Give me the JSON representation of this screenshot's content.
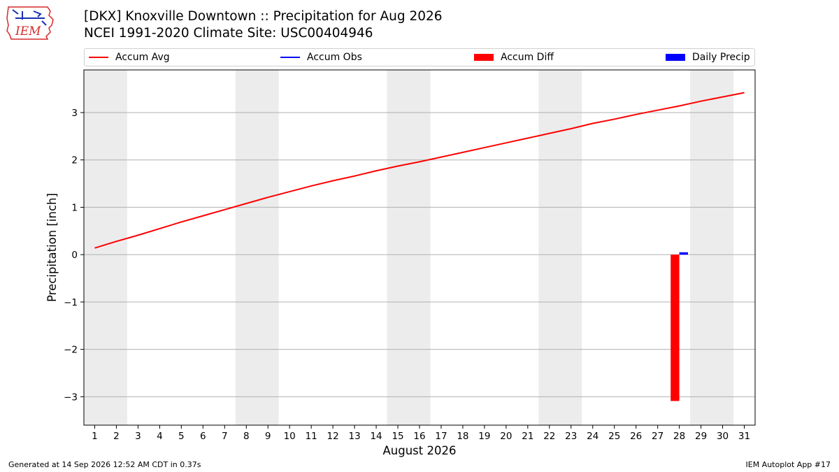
{
  "header": {
    "title_line1": "[DKX] Knoxville Downtown :: Precipitation for Aug 2026",
    "title_line2": "NCEI 1991-2020 Climate Site: USC00404946"
  },
  "logo": {
    "text": "IEM",
    "color": "#d62a2a",
    "accent": "#1a2fb3"
  },
  "legend": [
    {
      "label": "Accum Avg",
      "kind": "line",
      "color": "#ff0000"
    },
    {
      "label": "Accum Obs",
      "kind": "line",
      "color": "#0000ff"
    },
    {
      "label": "Accum Diff",
      "kind": "patch",
      "color": "#ff0000"
    },
    {
      "label": "Daily Precip",
      "kind": "patch",
      "color": "#0000ff"
    }
  ],
  "footer": {
    "left": "Generated at 14 Sep 2026 12:52 AM CDT in 0.37s",
    "right": "IEM Autoplot App #17"
  },
  "chart_data": {
    "type": "line",
    "xlabel": "August 2026",
    "ylabel": "Precipitation [inch]",
    "xlim": [
      0.5,
      31.5
    ],
    "ylim": [
      -3.6,
      3.9
    ],
    "xticks": [
      1,
      2,
      3,
      4,
      5,
      6,
      7,
      8,
      9,
      10,
      11,
      12,
      13,
      14,
      15,
      16,
      17,
      18,
      19,
      20,
      21,
      22,
      23,
      24,
      25,
      26,
      27,
      28,
      29,
      30,
      31
    ],
    "yticks": [
      -3,
      -2,
      -1,
      0,
      1,
      2,
      3
    ],
    "ytick_labels": [
      "−3",
      "−2",
      "−1",
      "0",
      "1",
      "2",
      "3"
    ],
    "grid": "y",
    "weekend_bands": [
      [
        1,
        2
      ],
      [
        8,
        9
      ],
      [
        15,
        16
      ],
      [
        22,
        23
      ],
      [
        29,
        30
      ]
    ],
    "weekend_color": "#ececec",
    "series": [
      {
        "name": "Accum Avg",
        "kind": "line",
        "color": "#ff0000",
        "x": [
          1,
          2,
          3,
          4,
          5,
          6,
          7,
          8,
          9,
          10,
          11,
          12,
          13,
          14,
          15,
          16,
          17,
          18,
          19,
          20,
          21,
          22,
          23,
          24,
          25,
          26,
          27,
          28,
          29,
          30,
          31
        ],
        "y": [
          0.14,
          0.28,
          0.41,
          0.55,
          0.69,
          0.82,
          0.95,
          1.08,
          1.21,
          1.33,
          1.45,
          1.56,
          1.66,
          1.77,
          1.87,
          1.96,
          2.06,
          2.16,
          2.26,
          2.36,
          2.46,
          2.56,
          2.66,
          2.77,
          2.86,
          2.96,
          3.05,
          3.14,
          3.24,
          3.33,
          3.42
        ]
      },
      {
        "name": "Accum Diff",
        "kind": "bar",
        "color": "#ff0000",
        "offset": -0.2,
        "x": [
          28
        ],
        "y": [
          -3.09
        ]
      },
      {
        "name": "Daily Precip",
        "kind": "bar",
        "color": "#0000ff",
        "offset": 0.2,
        "x": [
          28
        ],
        "y": [
          0.05
        ]
      }
    ]
  }
}
